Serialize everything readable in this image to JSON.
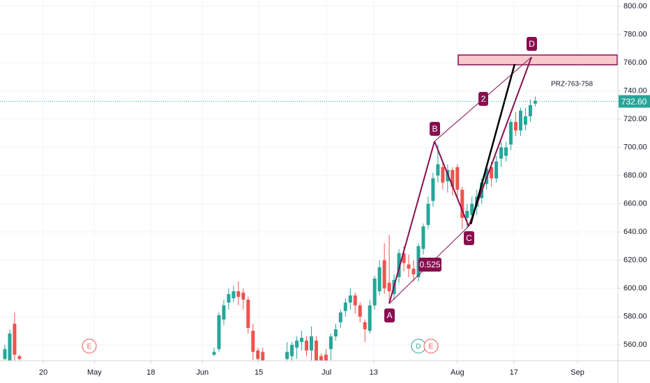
{
  "chart_data": {
    "type": "candlestick",
    "x": [
      1,
      2,
      3,
      4,
      44,
      45,
      46,
      47,
      48,
      49,
      50,
      51,
      52,
      53,
      54,
      59,
      60,
      61,
      62,
      63,
      64,
      65,
      66,
      67,
      68,
      69,
      70,
      71,
      72,
      73,
      74,
      75,
      76,
      77,
      78,
      79,
      80,
      81,
      82,
      83,
      84,
      85,
      86,
      87,
      88,
      89,
      90,
      91,
      92,
      93,
      94,
      95,
      96,
      97,
      98,
      99,
      100,
      101,
      102,
      103,
      104,
      105,
      106,
      107,
      108,
      109,
      110
    ],
    "open": [
      550,
      549,
      575,
      552,
      553,
      557,
      578,
      590,
      593,
      598,
      597,
      592,
      570,
      556,
      555,
      550,
      552,
      558,
      562,
      563,
      556,
      563,
      552,
      553,
      557,
      566,
      576,
      584,
      590,
      595,
      588,
      576,
      570,
      588,
      598,
      620,
      604,
      596,
      608,
      625,
      617,
      614,
      608,
      628,
      645,
      662,
      680,
      686,
      676,
      684,
      686,
      670,
      650,
      652,
      658,
      664,
      674,
      686,
      678,
      692,
      694,
      702,
      718,
      712,
      716,
      722,
      731
    ],
    "high": [
      560,
      571,
      583,
      553,
      558,
      583,
      592,
      600,
      602,
      605,
      600,
      594,
      575,
      558,
      558,
      562,
      562,
      566,
      570,
      566,
      573,
      566,
      554,
      557,
      568,
      575,
      585,
      593,
      600,
      597,
      590,
      578,
      592,
      609,
      620,
      632,
      638,
      610,
      628,
      630,
      624,
      620,
      632,
      646,
      665,
      682,
      702,
      690,
      688,
      686,
      688,
      672,
      660,
      665,
      670,
      678,
      688,
      690,
      694,
      704,
      704,
      720,
      725,
      728,
      728,
      734,
      736
    ],
    "low": [
      549,
      549,
      549,
      549,
      552,
      555,
      574,
      585,
      590,
      588,
      585,
      568,
      549,
      549,
      549,
      549,
      549,
      550,
      556,
      552,
      549,
      549,
      549,
      549,
      549,
      563,
      572,
      580,
      585,
      582,
      576,
      562,
      568,
      585,
      595,
      596,
      590,
      592,
      604,
      612,
      608,
      605,
      605,
      624,
      642,
      658,
      675,
      670,
      668,
      666,
      664,
      642,
      643,
      648,
      652,
      660,
      670,
      672,
      675,
      686,
      690,
      698,
      708,
      708,
      712,
      718,
      729
    ],
    "close": [
      557,
      568,
      553,
      550,
      555,
      581,
      588,
      596,
      598,
      594,
      592,
      572,
      555,
      550,
      549,
      555,
      560,
      563,
      565,
      556,
      566,
      549,
      549,
      549,
      566,
      571,
      583,
      590,
      595,
      588,
      580,
      571,
      588,
      607,
      615,
      600,
      598,
      606,
      625,
      618,
      614,
      610,
      630,
      644,
      660,
      678,
      688,
      675,
      684,
      672,
      670,
      650,
      655,
      660,
      665,
      675,
      685,
      678,
      690,
      700,
      700,
      718,
      712,
      726,
      722,
      730,
      733
    ],
    "xlim": [
      0,
      127
    ],
    "ylim": [
      549,
      802
    ],
    "yticks": [
      {
        "value": 560,
        "label": "560.00"
      },
      {
        "value": 580,
        "label": "580.00"
      },
      {
        "value": 600,
        "label": "600.00"
      },
      {
        "value": 620,
        "label": "620.00"
      },
      {
        "value": 640,
        "label": "640.00"
      },
      {
        "value": 660,
        "label": "660.00"
      },
      {
        "value": 680,
        "label": "680.00"
      },
      {
        "value": 700,
        "label": "700.00"
      },
      {
        "value": 720,
        "label": "720.00"
      },
      {
        "value": 740,
        "label": "740.00"
      },
      {
        "value": 760,
        "label": "760.00"
      },
      {
        "value": 780,
        "label": "780.00"
      },
      {
        "value": 800,
        "label": "800.00"
      }
    ],
    "xticks": [
      {
        "value": 8.9,
        "label": "20"
      },
      {
        "value": 19.4,
        "label": "May"
      },
      {
        "value": 31,
        "label": "18"
      },
      {
        "value": 41.6,
        "label": "Jun"
      },
      {
        "value": 53.2,
        "label": "15"
      },
      {
        "value": 67.1,
        "label": "Jul"
      },
      {
        "value": 76.8,
        "label": "13"
      },
      {
        "value": 94,
        "label": "Aug"
      },
      {
        "value": 105.6,
        "label": "17"
      },
      {
        "value": 118.7,
        "label": "Sep"
      }
    ],
    "up_color": "#26a69a",
    "down_color": "#ef5350",
    "grid": true,
    "last_price": {
      "value": 732.6,
      "label": "732.60"
    },
    "annotations": {
      "points": [
        "A",
        "B",
        "C",
        "D"
      ],
      "ratios": [
        "2",
        "0.525"
      ],
      "zone": "PRZ-763-758",
      "events": [
        "E",
        "D",
        "E"
      ]
    }
  }
}
